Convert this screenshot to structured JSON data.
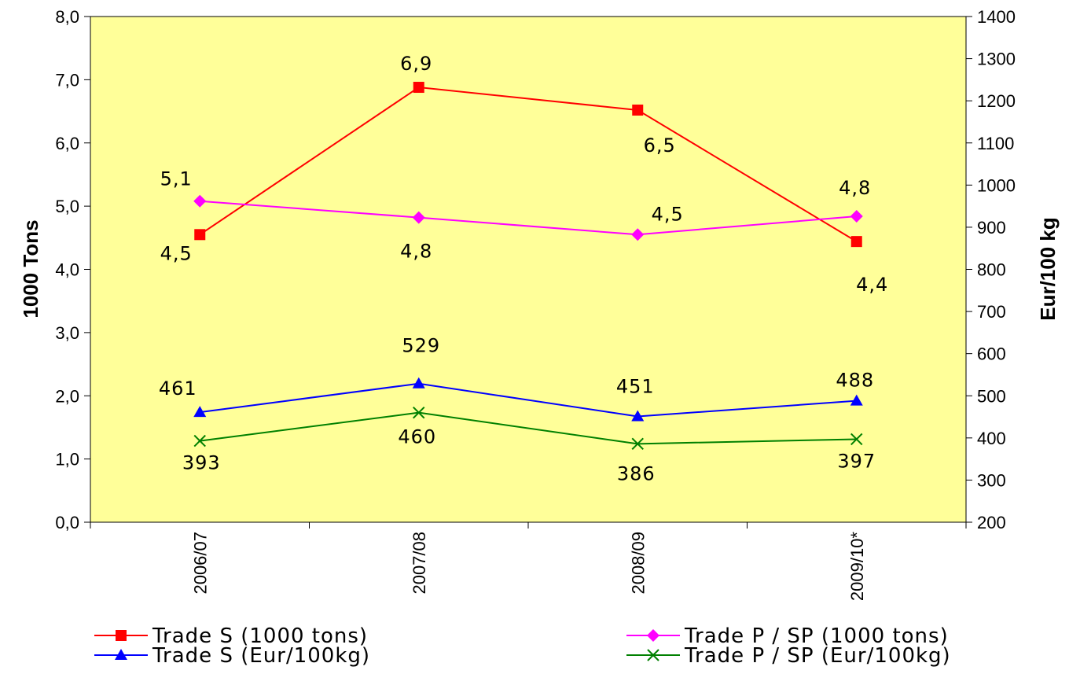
{
  "chart_data": {
    "type": "line",
    "categories": [
      "2006/07",
      "2007/08",
      "2008/09",
      "2009/10*"
    ],
    "y_left": {
      "label": "1000 Tons",
      "min": 0,
      "max": 8,
      "ticks": [
        "0,0",
        "1,0",
        "2,0",
        "3,0",
        "4,0",
        "5,0",
        "6,0",
        "7,0",
        "8,0"
      ]
    },
    "y_right": {
      "label": "Eur/100 kg",
      "min": 200,
      "max": 1400,
      "ticks": [
        "200",
        "300",
        "400",
        "500",
        "600",
        "700",
        "800",
        "900",
        "1000",
        "1100",
        "1200",
        "1300",
        "1400"
      ]
    },
    "plot_background": "#FFFF99",
    "series": [
      {
        "name": "Trade S (1000 tons)",
        "axis": "left",
        "color": "#FF0000",
        "marker": "square",
        "values": [
          4.55,
          6.88,
          6.52,
          4.44
        ],
        "labels": [
          "4,5",
          "6,9",
          "6,5",
          "4,4"
        ]
      },
      {
        "name": "Trade P / SP (1000 tons)",
        "axis": "left",
        "color": "#FF00FF",
        "marker": "diamond",
        "values": [
          5.08,
          4.82,
          4.55,
          4.84
        ],
        "labels": [
          "5,1",
          "4,8",
          "4,5",
          "4,8"
        ]
      },
      {
        "name": "Trade S (Eur/100kg)",
        "axis": "right",
        "color": "#0000FF",
        "marker": "triangle",
        "values": [
          461,
          529,
          451,
          488
        ],
        "labels": [
          "461",
          "529",
          "451",
          "488"
        ]
      },
      {
        "name": "Trade P / SP (Eur/100kg)",
        "axis": "right",
        "color": "#008000",
        "marker": "x",
        "values": [
          393,
          460,
          386,
          397
        ],
        "labels": [
          "393",
          "460",
          "386",
          "397"
        ]
      }
    ],
    "legend_position": "bottom",
    "grid": false
  }
}
